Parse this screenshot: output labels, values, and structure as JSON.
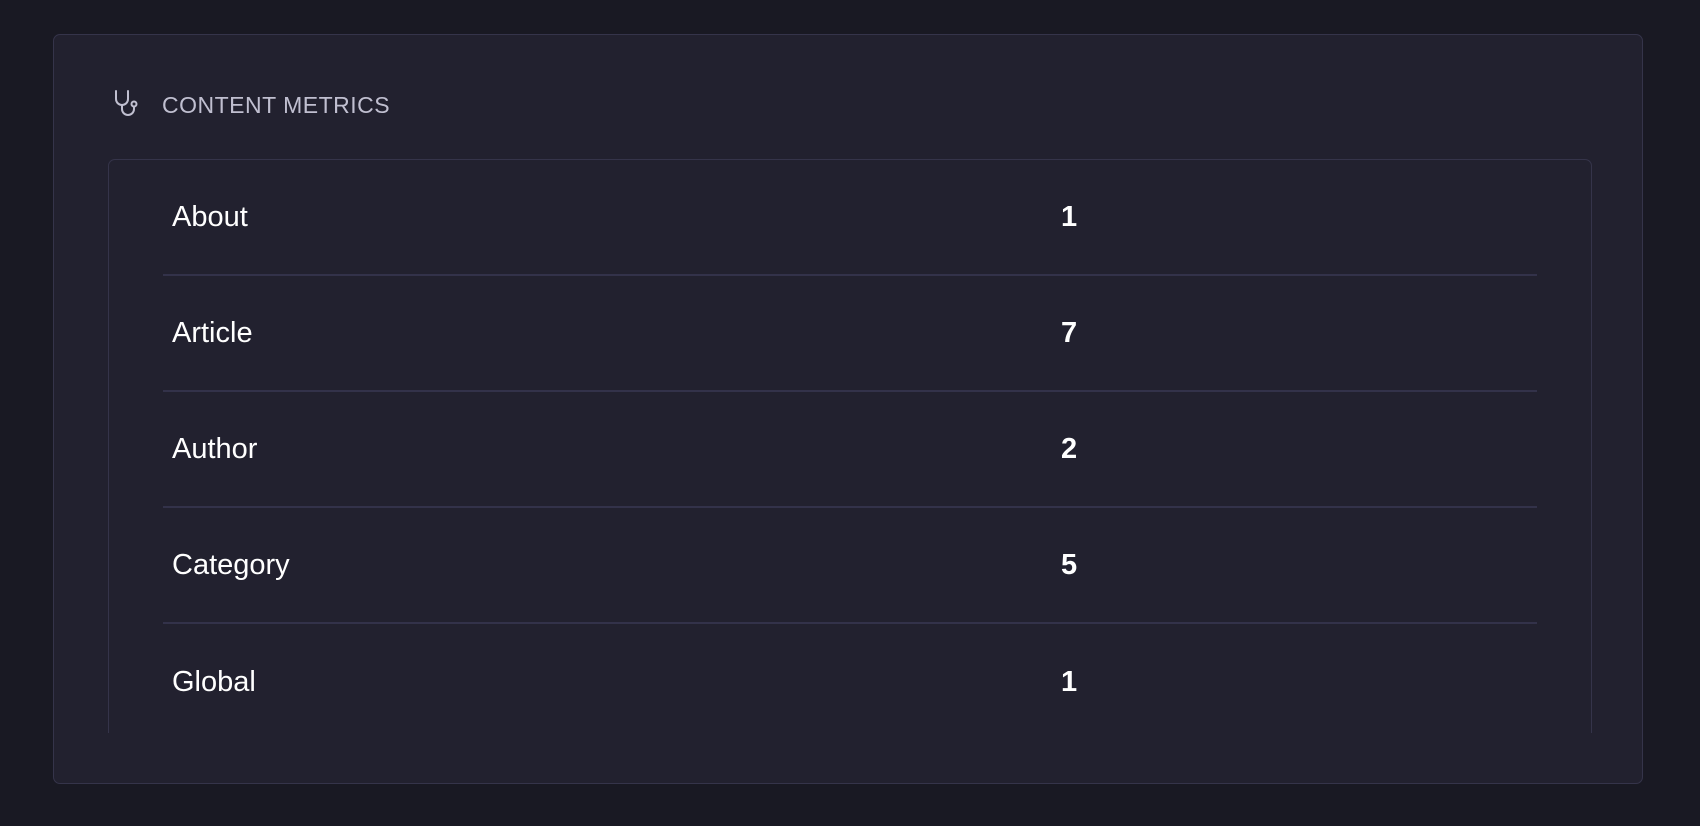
{
  "header": {
    "icon": "stethoscope-icon",
    "title": "CONTENT METRICS"
  },
  "metrics": [
    {
      "label": "About",
      "value": "1"
    },
    {
      "label": "Article",
      "value": "7"
    },
    {
      "label": "Author",
      "value": "2"
    },
    {
      "label": "Category",
      "value": "5"
    },
    {
      "label": "Global",
      "value": "1"
    }
  ],
  "colors": {
    "background": "#191923",
    "card": "#22212f",
    "border": "#35344a",
    "title": "#c0bfd0",
    "text": "#ffffff"
  }
}
